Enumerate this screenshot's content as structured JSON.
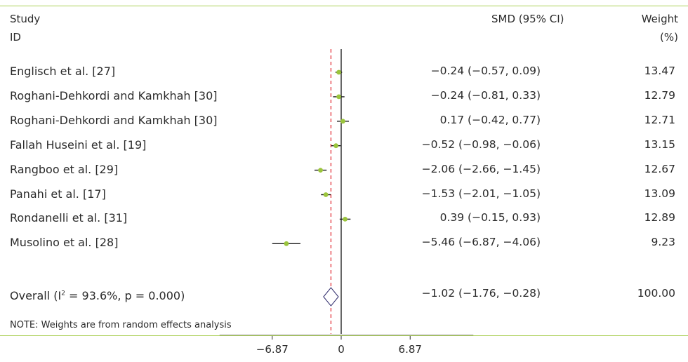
{
  "header": {
    "study_line1": "Study",
    "study_line2": "ID",
    "smd_label": "SMD (95% CI)",
    "weight_line1": "Weight",
    "weight_line2": "(%)"
  },
  "note": "NOTE: Weights are from random effects analysis",
  "colors": {
    "marker": "#9bc53d",
    "ci_line": "#1a1a1a",
    "null_line": "#000000",
    "overall_line": "#e0202a",
    "rule": "#a9cf54",
    "diamond": "#2e2a6b"
  },
  "chart_data": {
    "type": "forest",
    "xlabel": "",
    "ticks": [
      -6.87,
      0,
      6.87
    ],
    "tick_labels": [
      "−6.87",
      "0",
      "6.87"
    ],
    "xlim": [
      -6.87,
      6.87
    ],
    "null_value": 0,
    "studies": [
      {
        "name": "Englisch et al. [27]",
        "smd": -0.24,
        "lower": -0.57,
        "upper": 0.09,
        "ci_text": "−0.24 (−0.57, 0.09)",
        "weight": "13.47"
      },
      {
        "name": "Roghani-Dehkordi and Kamkhah [30]",
        "smd": -0.24,
        "lower": -0.81,
        "upper": 0.33,
        "ci_text": "−0.24 (−0.81, 0.33)",
        "weight": "12.79"
      },
      {
        "name": "Roghani-Dehkordi and Kamkhah [30]",
        "smd": 0.17,
        "lower": -0.42,
        "upper": 0.77,
        "ci_text": "0.17 (−0.42, 0.77)",
        "weight": "12.71"
      },
      {
        "name": "Fallah Huseini et al. [19]",
        "smd": -0.52,
        "lower": -0.98,
        "upper": -0.06,
        "ci_text": "−0.52 (−0.98, −0.06)",
        "weight": "13.15"
      },
      {
        "name": "Rangboo et al. [29]",
        "smd": -2.06,
        "lower": -2.66,
        "upper": -1.45,
        "ci_text": "−2.06 (−2.66, −1.45)",
        "weight": "12.67"
      },
      {
        "name": "Panahi et al. [17]",
        "smd": -1.53,
        "lower": -2.01,
        "upper": -1.05,
        "ci_text": "−1.53 (−2.01, −1.05)",
        "weight": "13.09"
      },
      {
        "name": "Rondanelli et al. [31]",
        "smd": 0.39,
        "lower": -0.15,
        "upper": 0.93,
        "ci_text": "0.39 (−0.15, 0.93)",
        "weight": "12.89"
      },
      {
        "name": "Musolino et al. [28]",
        "smd": -5.46,
        "lower": -6.87,
        "upper": -4.06,
        "ci_text": "−5.46 (−6.87, −4.06)",
        "weight": "9.23"
      }
    ],
    "overall": {
      "name_prefix": "Overall (I",
      "name_sup": "2",
      "name_suffix": " = 93.6%, p = 0.000)",
      "smd": -1.02,
      "lower": -1.76,
      "upper": -0.28,
      "ci_text": "−1.02 (−1.76, −0.28)",
      "weight": "100.00"
    }
  }
}
